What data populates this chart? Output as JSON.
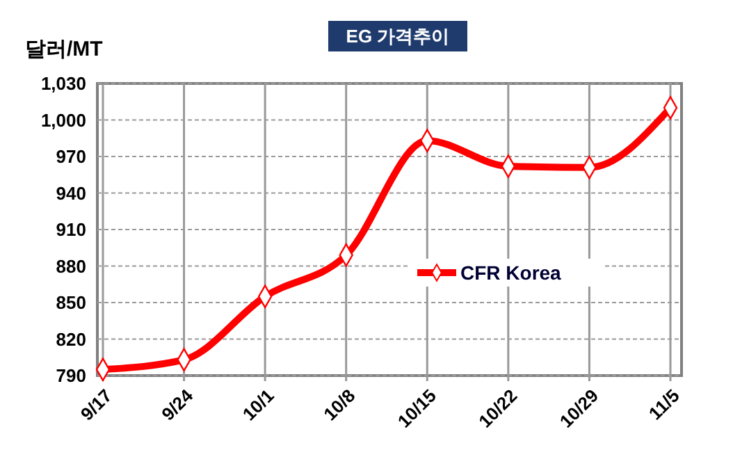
{
  "chart_data": {
    "type": "line",
    "title": "EG 가격추이",
    "ylabel": "달러/MT",
    "categories": [
      "9/17",
      "9/24",
      "10/1",
      "10/8",
      "10/15",
      "10/22",
      "10/29",
      "11/5"
    ],
    "series": [
      {
        "name": "CFR Korea",
        "color": "#ff0000",
        "values": [
          795,
          803,
          855,
          889,
          983,
          962,
          961,
          1010
        ]
      }
    ],
    "ylim": [
      790,
      1030
    ],
    "yticks": [
      790,
      820,
      850,
      880,
      910,
      940,
      970,
      {
        "value": 1000,
        "label": "1,000"
      },
      {
        "value": 1030,
        "label": "1,030"
      }
    ],
    "grid": true,
    "legend": "right",
    "marker": "diamond",
    "line_style": "solid"
  }
}
